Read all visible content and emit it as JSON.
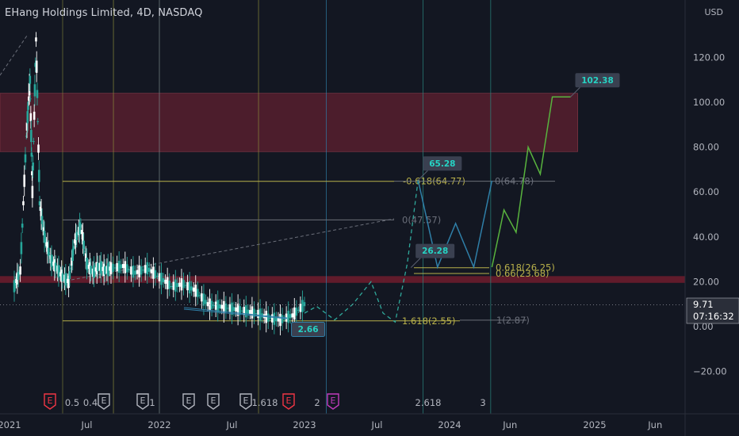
{
  "header": {
    "title": "EHang Holdings Limited, 4D, NASDAQ",
    "currency": "USD"
  },
  "price_box": {
    "price": "9.71",
    "countdown": "07:16:32"
  },
  "colors": {
    "background": "#131722",
    "candle_up": "#26a69a",
    "candle_down": "#ffffff",
    "zone_fill": "#5c1f2f",
    "support_band": "#6a1c2c",
    "fib_line": "#b8b04a",
    "projection_blue": "#2f7fa8",
    "projection_green": "#58b33e"
  },
  "chart_data": {
    "type": "line",
    "symbol": "EHang Holdings Limited",
    "interval": "4D",
    "exchange": "NASDAQ",
    "ylim": [
      -35,
      140
    ],
    "y_ticks": [
      120,
      100,
      80,
      60,
      40,
      20,
      0,
      -20
    ],
    "y_tick_labels": [
      "120.00",
      "100.00",
      "80.00",
      "60.00",
      "40.00",
      "20.00",
      "0.00",
      "−20.00"
    ],
    "x_ticks": [
      "2021",
      "Jul",
      "2022",
      "Jul",
      "2023",
      "Jul",
      "2024",
      "Jun",
      "2025",
      "Jun"
    ],
    "x_tick_months": [
      0,
      6,
      12,
      18,
      24,
      30,
      36,
      41,
      48,
      53
    ],
    "x_range_months": [
      0,
      58
    ],
    "price_path": {
      "months": [
        0,
        0.5,
        1,
        1.3,
        1.5,
        1.8,
        2.1,
        2.5,
        3,
        3.5,
        4,
        4.5,
        5,
        5.5,
        6,
        6.5,
        7,
        7.5,
        8,
        9,
        10,
        11,
        12,
        13,
        14,
        15,
        16,
        17,
        18,
        19,
        20,
        21,
        22,
        23,
        24
      ],
      "values": [
        18,
        25,
        85,
        110,
        60,
        128,
        55,
        40,
        30,
        26,
        22,
        20,
        38,
        45,
        28,
        24,
        27,
        25,
        26,
        27,
        24,
        26,
        22,
        18,
        19,
        16,
        10,
        9,
        8,
        7,
        6,
        4,
        3,
        5,
        10
      ]
    },
    "supply_zone": [
      78,
      104
    ],
    "support_band": [
      19.5,
      22.5
    ],
    "fib_levels": [
      {
        "label": "-0.618(64.77)",
        "value": 64.77
      },
      {
        "label": "0(64.78)",
        "value": 64.78
      },
      {
        "label": "0(47.57)",
        "value": 47.57
      },
      {
        "label": "0.618(26.25)",
        "value": 26.25
      },
      {
        "label": "0.66(23.68)",
        "value": 23.68
      },
      {
        "label": "1.618(2.55)",
        "value": 2.55
      },
      {
        "label": "1(2.87)",
        "value": 2.87
      }
    ],
    "callouts": [
      {
        "label": "102.38",
        "month": 46,
        "value": 102.38
      },
      {
        "label": "65.28",
        "month": 33.4,
        "value": 65.28
      },
      {
        "label": "26.28",
        "month": 32.8,
        "value": 26.28
      },
      {
        "label": "2.66",
        "month": 24.3,
        "value": 2.66
      }
    ],
    "projection_dashed": {
      "months": [
        24,
        25,
        26.5,
        28,
        29.5,
        30.5,
        31.5,
        32.5,
        33.4
      ],
      "values": [
        6,
        9,
        3,
        10,
        20,
        6,
        2,
        28,
        65.28
      ]
    },
    "projection_blue": {
      "months": [
        33.4,
        35,
        36.5,
        38,
        39.5
      ],
      "values": [
        65.28,
        26.5,
        46,
        26.5,
        65
      ]
    },
    "projection_green": {
      "months": [
        39.5,
        40.5,
        41.5,
        42.5,
        43.5,
        44.5,
        46
      ],
      "values": [
        26.5,
        52,
        42,
        80,
        68,
        102.38,
        102.38
      ]
    },
    "vertical_markers": [
      {
        "month": 8.2,
        "label": "0.5"
      },
      {
        "month": 12,
        "label": ""
      },
      {
        "month": 20.2,
        "label": "1.618"
      },
      {
        "month": 25.8,
        "label": "2"
      },
      {
        "month": 33.8,
        "label": "2.618"
      },
      {
        "month": 39.4,
        "label": "3"
      }
    ],
    "earnings_markers": [
      "E",
      "E",
      "E",
      "E",
      "E",
      "E",
      "E",
      "E"
    ],
    "bottom_labels": [
      "0.5",
      "0.4",
      "1",
      "1.618",
      "2",
      "2.618",
      "3"
    ]
  }
}
